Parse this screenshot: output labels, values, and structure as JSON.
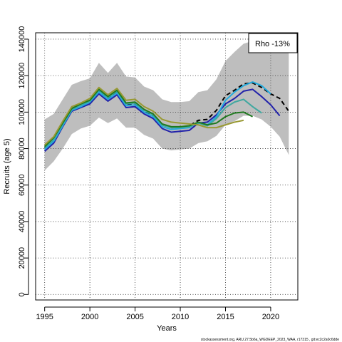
{
  "chart_data": {
    "type": "line",
    "title": "",
    "xlabel": "Years",
    "ylabel": "Recruits (age 5)",
    "xlim": [
      1994,
      2023
    ],
    "ylim": [
      -3000,
      143500
    ],
    "xticks": [
      1995,
      2000,
      2005,
      2010,
      2015,
      2020
    ],
    "yticks": [
      0,
      20000,
      40000,
      60000,
      80000,
      100000,
      120000,
      140000
    ],
    "grid": true,
    "legend": {
      "position": "top-right",
      "text": "Rho -13%"
    },
    "caption": "stockassessment.org, ARU.27.5b6a_WGDEEP_2023_WAA, r17315 , git:ec2c2a0c6dde",
    "confidence_band": {
      "x": [
        1995,
        1996,
        1997,
        1998,
        1999,
        2000,
        2001,
        2002,
        2003,
        2004,
        2005,
        2006,
        2007,
        2008,
        2009,
        2010,
        2011,
        2012,
        2013,
        2014,
        2015,
        2016,
        2017,
        2018,
        2019,
        2020,
        2021,
        2022
      ],
      "upper": [
        96000,
        99000,
        107000,
        115000,
        117000,
        118500,
        127000,
        121500,
        127000,
        119500,
        119000,
        114000,
        112000,
        107000,
        105500,
        105500,
        106000,
        111000,
        112000,
        118000,
        128000,
        133000,
        137500,
        139000,
        138500,
        136000,
        135500,
        132500
      ],
      "lower": [
        68000,
        73000,
        80000,
        88000,
        91000,
        92500,
        97000,
        94000,
        96500,
        91500,
        91500,
        87500,
        85500,
        80000,
        79000,
        79500,
        80000,
        83000,
        84000,
        87000,
        93000,
        95000,
        98000,
        98000,
        96000,
        92000,
        86500,
        76500
      ]
    },
    "series": [
      {
        "color": "#000000",
        "dashed": true,
        "x": [
          1995,
          1996,
          1997,
          1998,
          1999,
          2000,
          2001,
          2002,
          2003,
          2004,
          2005,
          2006,
          2007,
          2008,
          2009,
          2010,
          2011,
          2012,
          2013,
          2014,
          2015,
          2016,
          2017,
          2018,
          2019,
          2020,
          2021,
          2022
        ],
        "values": [
          80000,
          84500,
          93000,
          101500,
          104000,
          106000,
          111500,
          107500,
          111000,
          104000,
          104500,
          100500,
          98000,
          93000,
          91500,
          91500,
          92500,
          95500,
          96000,
          101000,
          109000,
          112000,
          115500,
          116000,
          113500,
          110000,
          107500,
          100500
        ]
      },
      {
        "color": "#2222aa",
        "x": [
          1995,
          1996,
          1997,
          1998,
          1999,
          2000,
          2001,
          2002,
          2003,
          2004,
          2005,
          2006,
          2007,
          2008,
          2009,
          2010,
          2011,
          2012,
          2013,
          2014,
          2015,
          2016,
          2017,
          2018,
          2019,
          2020,
          2021
        ],
        "values": [
          78500,
          83000,
          92000,
          100500,
          102500,
          104500,
          110000,
          106000,
          109500,
          102500,
          103000,
          99000,
          96500,
          91000,
          89000,
          89500,
          90000,
          94000,
          94500,
          98500,
          104500,
          107500,
          111500,
          112500,
          108500,
          104000,
          98000
        ]
      },
      {
        "color": "#22aadd",
        "x": [
          1995,
          1996,
          1997,
          1998,
          1999,
          2000,
          2001,
          2002,
          2003,
          2004,
          2005,
          2006,
          2007,
          2008,
          2009,
          2010,
          2011,
          2012,
          2013,
          2014,
          2015,
          2016,
          2017,
          2018,
          2019,
          2020
        ],
        "values": [
          79500,
          84000,
          92500,
          101000,
          103000,
          105500,
          111000,
          107000,
          110500,
          103500,
          104000,
          100000,
          97500,
          92000,
          90500,
          91000,
          91500,
          94500,
          93000,
          97500,
          106500,
          111000,
          114500,
          116500,
          114500,
          110000
        ]
      },
      {
        "color": "#40a8a0",
        "x": [
          1995,
          1996,
          1997,
          1998,
          1999,
          2000,
          2001,
          2002,
          2003,
          2004,
          2005,
          2006,
          2007,
          2008,
          2009,
          2010,
          2011,
          2012,
          2013,
          2014,
          2015,
          2016,
          2017,
          2018,
          2019
        ],
        "values": [
          80500,
          85000,
          93500,
          101500,
          104000,
          106000,
          112000,
          108000,
          111500,
          104500,
          105000,
          101000,
          98500,
          93000,
          91500,
          91500,
          92000,
          94000,
          92500,
          96500,
          102500,
          105500,
          107000,
          103000,
          99500
        ]
      },
      {
        "color": "#1f7a1f",
        "x": [
          1995,
          1996,
          1997,
          1998,
          1999,
          2000,
          2001,
          2002,
          2003,
          2004,
          2005,
          2006,
          2007,
          2008,
          2009,
          2010,
          2011,
          2012,
          2013,
          2014,
          2015,
          2016,
          2017,
          2018
        ],
        "values": [
          81000,
          86000,
          94000,
          102000,
          104500,
          106500,
          112500,
          108500,
          112000,
          105000,
          105500,
          101500,
          99000,
          93500,
          92000,
          92000,
          92500,
          94500,
          93000,
          94000,
          97500,
          99500,
          100000,
          97500
        ]
      },
      {
        "color": "#999933",
        "x": [
          1995,
          1996,
          1997,
          1998,
          1999,
          2000,
          2001,
          2002,
          2003,
          2004,
          2005,
          2006,
          2007,
          2008,
          2009,
          2010,
          2011,
          2012,
          2013,
          2014,
          2015,
          2016,
          2017
        ],
        "values": [
          82000,
          86500,
          95000,
          103000,
          105000,
          107500,
          113500,
          109500,
          113000,
          106500,
          107000,
          103000,
          100500,
          96000,
          94500,
          94000,
          93500,
          93000,
          91500,
          91500,
          93000,
          94500,
          95500
        ]
      }
    ]
  }
}
